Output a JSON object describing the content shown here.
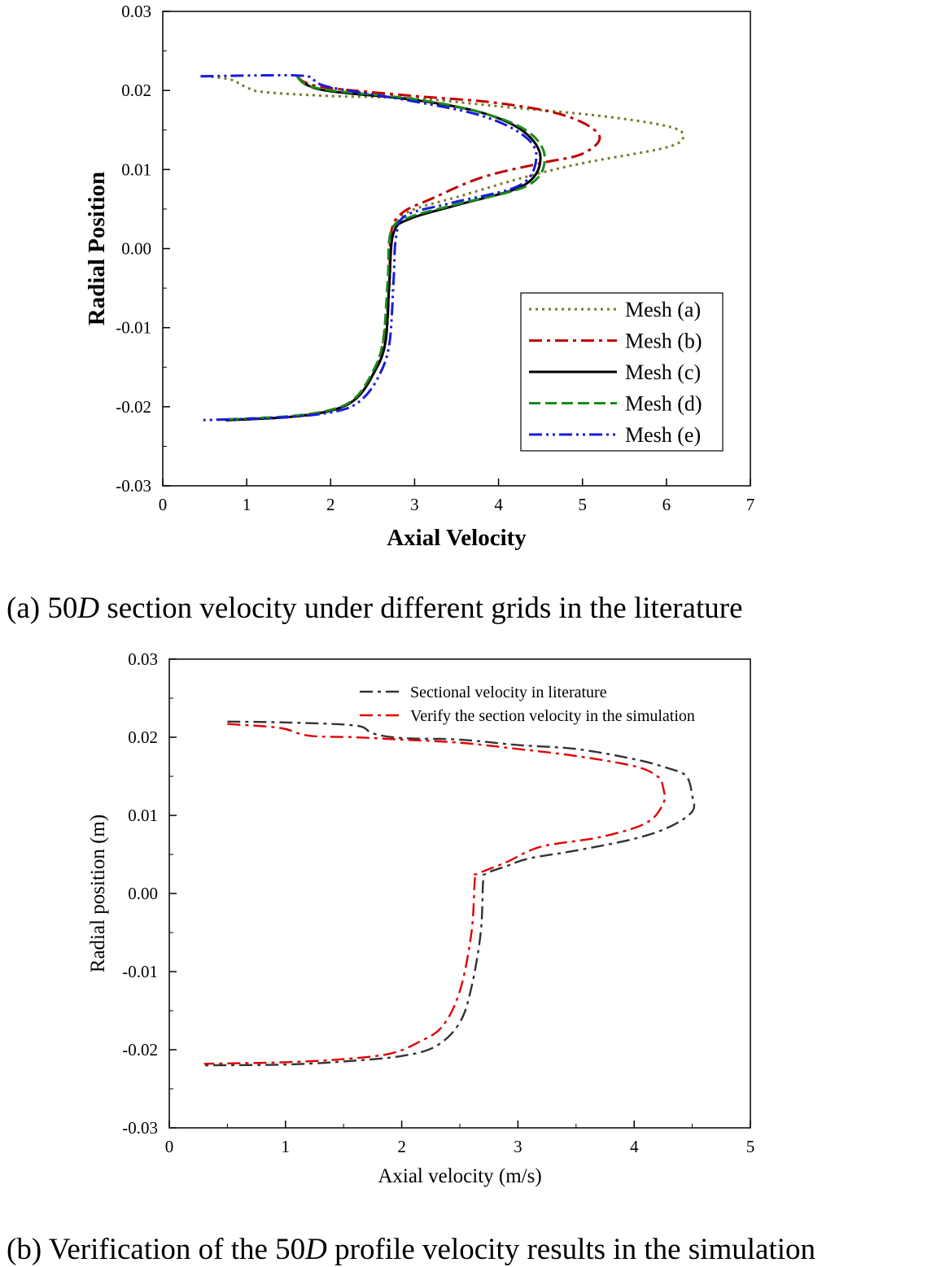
{
  "captions": {
    "a": {
      "prefix": "(a) 50",
      "italic": "D",
      "suffix": " section velocity under different grids in the literature"
    },
    "b": {
      "prefix": "(b) Verification of the 50",
      "italic": "D",
      "suffix": " profile velocity results in the simulation"
    }
  },
  "chart_data": [
    {
      "id": "panel-a",
      "type": "line",
      "xlabel": "Axial Velocity",
      "ylabel": "Radial Position",
      "xlim": [
        0,
        7
      ],
      "ylim": [
        -0.03,
        0.03
      ],
      "xticks": [
        0,
        1,
        2,
        3,
        4,
        5,
        6,
        7
      ],
      "xtick_labels": [
        "0",
        "1",
        "2",
        "3",
        "4",
        "5",
        "6",
        "7"
      ],
      "yticks": [
        -0.03,
        -0.02,
        -0.01,
        0.0,
        0.01,
        0.02,
        0.03
      ],
      "ytick_labels": [
        "-0.03",
        "-0.02",
        "-0.01",
        "0.00",
        "0.01",
        "0.02",
        "0.03"
      ],
      "legend_position": "bottom-right",
      "series": [
        {
          "name": "Mesh (a)",
          "color": "#7a7a2a",
          "dash": "dotted",
          "points": [
            [
              0.5,
              0.0218
            ],
            [
              0.8,
              0.0214
            ],
            [
              1.0,
              0.0204
            ],
            [
              1.2,
              0.0198
            ],
            [
              2.0,
              0.0193
            ],
            [
              3.0,
              0.019
            ],
            [
              4.0,
              0.018
            ],
            [
              5.2,
              0.0168
            ],
            [
              6.0,
              0.0155
            ],
            [
              6.2,
              0.0143
            ],
            [
              6.0,
              0.0128
            ],
            [
              5.0,
              0.0108
            ],
            [
              4.3,
              0.009
            ],
            [
              3.5,
              0.0065
            ],
            [
              3.0,
              0.005
            ],
            [
              2.8,
              0.0035
            ],
            [
              2.72,
              0.001
            ],
            [
              2.7,
              -0.005
            ],
            [
              2.62,
              -0.012
            ],
            [
              2.5,
              -0.016
            ],
            [
              2.3,
              -0.019
            ],
            [
              2.0,
              -0.0205
            ],
            [
              1.5,
              -0.0213
            ],
            [
              0.75,
              -0.0217
            ]
          ]
        },
        {
          "name": "Mesh (b)",
          "color": "#c00000",
          "dash": "dashdot",
          "points": [
            [
              1.6,
              0.0218
            ],
            [
              1.7,
              0.021
            ],
            [
              2.0,
              0.0203
            ],
            [
              3.0,
              0.0193
            ],
            [
              4.0,
              0.0184
            ],
            [
              4.8,
              0.0168
            ],
            [
              5.2,
              0.0143
            ],
            [
              5.0,
              0.012
            ],
            [
              4.5,
              0.0108
            ],
            [
              3.8,
              0.009
            ],
            [
              3.2,
              0.0063
            ],
            [
              2.85,
              0.0045
            ],
            [
              2.72,
              0.002
            ],
            [
              2.7,
              -0.004
            ],
            [
              2.65,
              -0.012
            ],
            [
              2.5,
              -0.016
            ],
            [
              2.3,
              -0.019
            ],
            [
              2.0,
              -0.0205
            ],
            [
              1.5,
              -0.0213
            ],
            [
              0.75,
              -0.0217
            ]
          ]
        },
        {
          "name": "Mesh (c)",
          "color": "#000000",
          "dash": "solid",
          "points": [
            [
              1.6,
              0.0218
            ],
            [
              1.7,
              0.0208
            ],
            [
              2.0,
              0.0199
            ],
            [
              3.0,
              0.0188
            ],
            [
              3.8,
              0.0172
            ],
            [
              4.3,
              0.0148
            ],
            [
              4.5,
              0.0115
            ],
            [
              4.3,
              0.008
            ],
            [
              3.5,
              0.0055
            ],
            [
              2.95,
              0.0038
            ],
            [
              2.75,
              0.002
            ],
            [
              2.7,
              -0.004
            ],
            [
              2.65,
              -0.012
            ],
            [
              2.5,
              -0.016
            ],
            [
              2.3,
              -0.019
            ],
            [
              2.0,
              -0.0205
            ],
            [
              1.5,
              -0.0213
            ],
            [
              0.75,
              -0.0217
            ]
          ]
        },
        {
          "name": "Mesh (d)",
          "color": "#1a8a1a",
          "dash": "dashed",
          "points": [
            [
              1.6,
              0.0218
            ],
            [
              1.7,
              0.0208
            ],
            [
              2.0,
              0.02
            ],
            [
              3.0,
              0.0189
            ],
            [
              3.8,
              0.0172
            ],
            [
              4.35,
              0.0148
            ],
            [
              4.55,
              0.0115
            ],
            [
              4.35,
              0.008
            ],
            [
              3.5,
              0.0056
            ],
            [
              2.95,
              0.004
            ],
            [
              2.72,
              0.0022
            ],
            [
              2.68,
              -0.004
            ],
            [
              2.62,
              -0.012
            ],
            [
              2.48,
              -0.016
            ],
            [
              2.28,
              -0.019
            ],
            [
              2.0,
              -0.0204
            ],
            [
              1.5,
              -0.0212
            ],
            [
              0.75,
              -0.0216
            ]
          ]
        },
        {
          "name": "Mesh (e)",
          "color": "#1a1add",
          "dash": "dashdotdot",
          "points": [
            [
              0.45,
              0.0218
            ],
            [
              1.6,
              0.0219
            ],
            [
              1.8,
              0.0213
            ],
            [
              2.0,
              0.0204
            ],
            [
              3.0,
              0.0186
            ],
            [
              3.8,
              0.0168
            ],
            [
              4.3,
              0.0143
            ],
            [
              4.45,
              0.0115
            ],
            [
              4.25,
              0.008
            ],
            [
              3.45,
              0.0058
            ],
            [
              2.9,
              0.0042
            ],
            [
              2.78,
              0.0015
            ],
            [
              2.75,
              -0.004
            ],
            [
              2.7,
              -0.012
            ],
            [
              2.58,
              -0.016
            ],
            [
              2.38,
              -0.019
            ],
            [
              2.1,
              -0.0205
            ],
            [
              1.5,
              -0.0213
            ],
            [
              0.45,
              -0.0217
            ]
          ]
        }
      ]
    },
    {
      "id": "panel-b",
      "type": "line",
      "xlabel": "Axial velocity (m/s)",
      "ylabel": "Radial position (m)",
      "xlim": [
        0,
        5
      ],
      "ylim": [
        -0.03,
        0.03
      ],
      "xticks": [
        0,
        1,
        2,
        3,
        4,
        5
      ],
      "xtick_labels": [
        "0",
        "1",
        "2",
        "3",
        "4",
        "5"
      ],
      "yticks": [
        -0.03,
        -0.02,
        -0.01,
        0.0,
        0.01,
        0.02,
        0.03
      ],
      "ytick_labels": [
        "-0.03",
        "-0.02",
        "-0.01",
        "0.00",
        "0.01",
        "0.02",
        "0.03"
      ],
      "legend_position": "top-right",
      "series": [
        {
          "name": "Sectional velocity in literature",
          "color": "#333333",
          "dash": "dashdot",
          "points": [
            [
              0.5,
              0.022
            ],
            [
              1.0,
              0.0219
            ],
            [
              1.6,
              0.0215
            ],
            [
              1.75,
              0.0205
            ],
            [
              2.0,
              0.0199
            ],
            [
              2.5,
              0.0197
            ],
            [
              3.0,
              0.019
            ],
            [
              3.5,
              0.0185
            ],
            [
              4.0,
              0.0172
            ],
            [
              4.3,
              0.016
            ],
            [
              4.45,
              0.015
            ],
            [
              4.5,
              0.0125
            ],
            [
              4.5,
              0.0105
            ],
            [
              4.3,
              0.0085
            ],
            [
              4.0,
              0.007
            ],
            [
              3.5,
              0.0055
            ],
            [
              3.1,
              0.0045
            ],
            [
              2.9,
              0.0035
            ],
            [
              2.72,
              0.0025
            ],
            [
              2.7,
              0.0015
            ],
            [
              2.68,
              -0.005
            ],
            [
              2.6,
              -0.012
            ],
            [
              2.5,
              -0.0165
            ],
            [
              2.3,
              -0.0195
            ],
            [
              2.0,
              -0.0208
            ],
            [
              1.5,
              -0.0215
            ],
            [
              1.0,
              -0.0219
            ],
            [
              0.3,
              -0.022
            ]
          ]
        },
        {
          "name": "Verify the section velocity in the simulation",
          "color": "#e00000",
          "dash": "dashdot",
          "points": [
            [
              0.5,
              0.0217
            ],
            [
              0.95,
              0.0212
            ],
            [
              1.2,
              0.0202
            ],
            [
              1.6,
              0.02
            ],
            [
              2.0,
              0.0197
            ],
            [
              2.5,
              0.0193
            ],
            [
              3.0,
              0.0185
            ],
            [
              3.5,
              0.0176
            ],
            [
              4.0,
              0.0163
            ],
            [
              4.2,
              0.015
            ],
            [
              4.25,
              0.0135
            ],
            [
              4.25,
              0.0115
            ],
            [
              4.1,
              0.009
            ],
            [
              3.7,
              0.0072
            ],
            [
              3.2,
              0.006
            ],
            [
              2.9,
              0.004
            ],
            [
              2.65,
              0.0025
            ],
            [
              2.63,
              0.002
            ],
            [
              2.6,
              -0.005
            ],
            [
              2.5,
              -0.0125
            ],
            [
              2.35,
              -0.017
            ],
            [
              2.15,
              -0.019
            ],
            [
              1.9,
              -0.0205
            ],
            [
              1.5,
              -0.0212
            ],
            [
              1.0,
              -0.0216
            ],
            [
              0.3,
              -0.0218
            ]
          ]
        }
      ]
    }
  ]
}
